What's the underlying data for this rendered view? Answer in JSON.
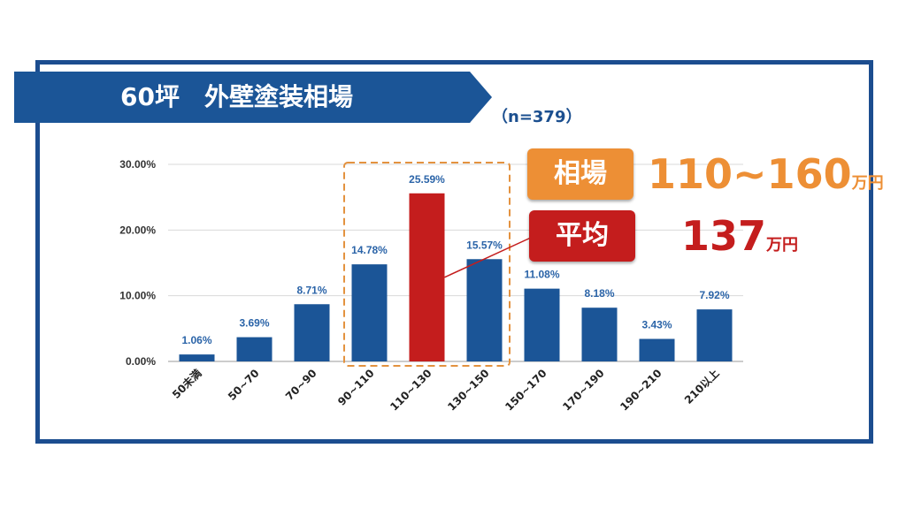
{
  "title": "60坪　外壁塗装相場",
  "sample_size": "（n=379）",
  "badges": {
    "range_label": "相場",
    "range_value": "110~160",
    "range_unit": "万円",
    "avg_label": "平均",
    "avg_value": "137",
    "avg_unit": "万円"
  },
  "colors": {
    "primary": "#1b5597",
    "highlight": "#c41d1d",
    "accent": "#ed8f35"
  },
  "chart_data": {
    "type": "bar",
    "categories": [
      "50未満",
      "50~70",
      "70~90",
      "90~110",
      "110~130",
      "130~150",
      "150~170",
      "170~190",
      "190~210",
      "210以上"
    ],
    "values": [
      1.06,
      3.69,
      8.71,
      14.78,
      25.59,
      15.57,
      11.08,
      8.18,
      3.43,
      7.92
    ],
    "data_labels": [
      "1.06%",
      "3.69%",
      "8.71%",
      "14.78%",
      "25.59%",
      "15.57%",
      "11.08%",
      "8.18%",
      "3.43%",
      "7.92%"
    ],
    "y_ticks": [
      "0.00%",
      "10.00%",
      "20.00%",
      "30.00%"
    ],
    "ylim": [
      0,
      30
    ],
    "highlight_index": 4,
    "highlight_range": [
      "90~110",
      "130~150"
    ],
    "grid": true
  }
}
